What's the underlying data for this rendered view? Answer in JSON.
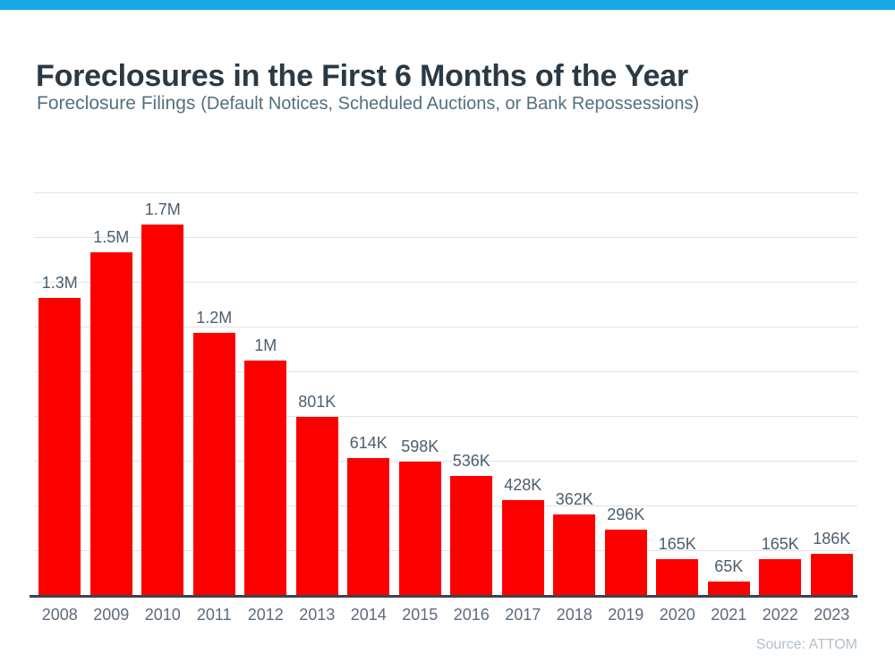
{
  "page": {
    "accent_color": "#17a8e8",
    "background": "#ffffff"
  },
  "header": {
    "title": "Foreclosures in the First 6 Months of the Year",
    "subtitle_main": "Foreclosure Filings",
    "subtitle_paren": "(Default Notices, Scheduled Auctions, or Bank Repossessions)"
  },
  "chart_data": {
    "type": "bar",
    "title": "Foreclosures in the First 6 Months of the Year",
    "subtitle": "Foreclosure Filings (Default Notices, Scheduled Auctions, or Bank Repossessions)",
    "categories": [
      "2008",
      "2009",
      "2010",
      "2011",
      "2012",
      "2013",
      "2014",
      "2015",
      "2016",
      "2017",
      "2018",
      "2019",
      "2020",
      "2021",
      "2022",
      "2023"
    ],
    "values": [
      1330000,
      1535000,
      1660000,
      1175000,
      1050000,
      801000,
      614000,
      598000,
      536000,
      428000,
      362000,
      296000,
      165000,
      65000,
      165000,
      186000
    ],
    "labels": [
      "1.3M",
      "1.5M",
      "1.7M",
      "1.2M",
      "1M",
      "801K",
      "614K",
      "598K",
      "536K",
      "428K",
      "362K",
      "296K",
      "165K",
      "65K",
      "165K",
      "186K"
    ],
    "xlabel": "",
    "ylabel": "",
    "ylim": [
      0,
      1800000
    ],
    "gridline_step": 200000,
    "grid": true,
    "legend": false,
    "bar_color": "#fc0000",
    "source_label": "Source: ATTOM"
  },
  "colors": {
    "bar": "#fc0000",
    "gridline": "#e1e3e5",
    "axis_line": "#3a444d",
    "title_text": "#2b3944",
    "subtitle_text": "#54707f",
    "value_label_text": "#4c5e6d",
    "year_label_text": "#5b6c7d",
    "source_text": "#b2c0cb"
  }
}
